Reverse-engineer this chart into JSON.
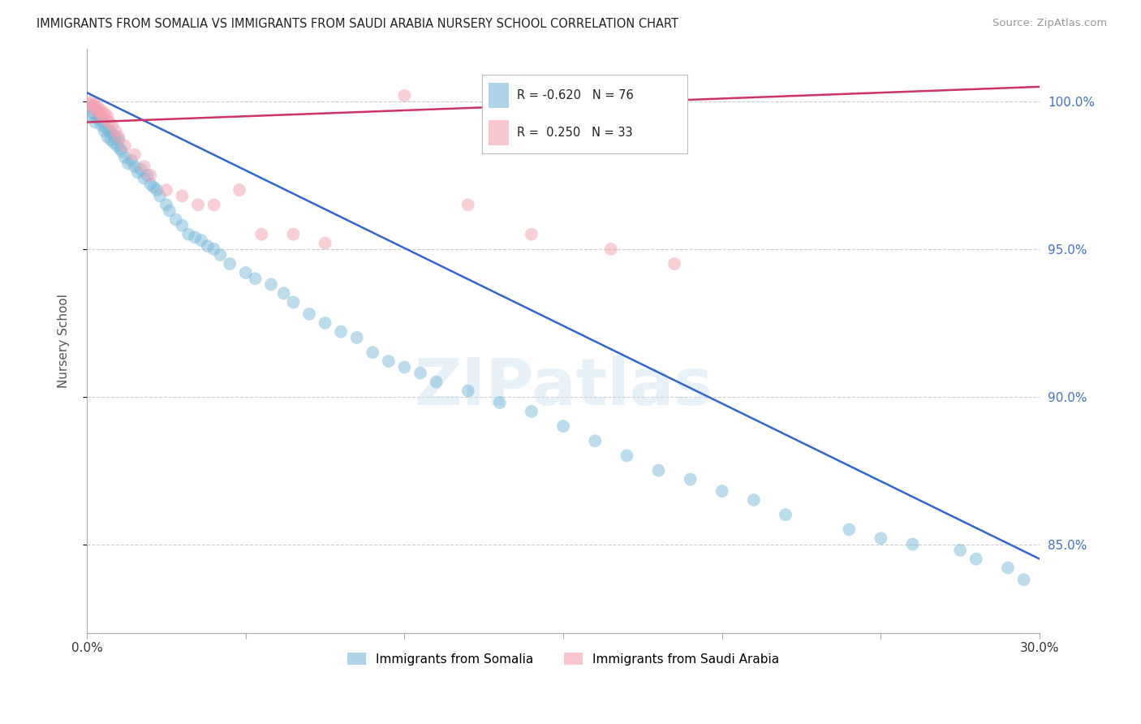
{
  "title": "IMMIGRANTS FROM SOMALIA VS IMMIGRANTS FROM SAUDI ARABIA NURSERY SCHOOL CORRELATION CHART",
  "source": "Source: ZipAtlas.com",
  "ylabel": "Nursery School",
  "yticks": [
    100.0,
    95.0,
    90.0,
    85.0
  ],
  "ytick_labels": [
    "100.0%",
    "95.0%",
    "90.0%",
    "85.0%"
  ],
  "xmin": 0.0,
  "xmax": 30.0,
  "ymin": 82.0,
  "ymax": 101.8,
  "legend_somalia": "Immigrants from Somalia",
  "legend_saudi": "Immigrants from Saudi Arabia",
  "R_somalia": -0.62,
  "N_somalia": 76,
  "R_saudi": 0.25,
  "N_saudi": 33,
  "color_somalia": "#7ab8d9",
  "color_saudi": "#f4a0b0",
  "color_line_somalia": "#3366cc",
  "color_line_saudi": "#cc3366",
  "watermark": "ZIPatlas",
  "somalia_x": [
    0.1,
    0.15,
    0.2,
    0.25,
    0.3,
    0.35,
    0.4,
    0.45,
    0.5,
    0.55,
    0.6,
    0.65,
    0.7,
    0.75,
    0.8,
    0.85,
    0.9,
    0.95,
    1.0,
    1.05,
    1.1,
    1.2,
    1.3,
    1.4,
    1.5,
    1.6,
    1.7,
    1.8,
    1.9,
    2.0,
    2.1,
    2.2,
    2.3,
    2.5,
    2.6,
    2.8,
    3.0,
    3.2,
    3.4,
    3.6,
    3.8,
    4.0,
    4.2,
    4.5,
    5.0,
    5.3,
    5.8,
    6.2,
    6.5,
    7.0,
    7.5,
    8.0,
    8.5,
    9.0,
    9.5,
    10.0,
    10.5,
    11.0,
    12.0,
    13.0,
    14.0,
    15.0,
    16.0,
    17.0,
    18.0,
    19.0,
    20.0,
    21.0,
    22.0,
    24.0,
    25.0,
    26.0,
    27.5,
    28.0,
    29.0,
    29.5
  ],
  "somalia_y": [
    99.8,
    99.5,
    99.6,
    99.3,
    99.7,
    99.4,
    99.5,
    99.2,
    99.3,
    99.0,
    99.1,
    98.8,
    99.0,
    98.7,
    98.9,
    98.6,
    98.8,
    98.5,
    98.7,
    98.4,
    98.3,
    98.1,
    97.9,
    98.0,
    97.8,
    97.6,
    97.7,
    97.4,
    97.5,
    97.2,
    97.1,
    97.0,
    96.8,
    96.5,
    96.3,
    96.0,
    95.8,
    95.5,
    95.4,
    95.3,
    95.1,
    95.0,
    94.8,
    94.5,
    94.2,
    94.0,
    93.8,
    93.5,
    93.2,
    92.8,
    92.5,
    92.2,
    92.0,
    91.5,
    91.2,
    91.0,
    90.8,
    90.5,
    90.2,
    89.8,
    89.5,
    89.0,
    88.5,
    88.0,
    87.5,
    87.2,
    86.8,
    86.5,
    86.0,
    85.5,
    85.2,
    85.0,
    84.8,
    84.5,
    84.2,
    83.8
  ],
  "saudi_x": [
    0.1,
    0.15,
    0.2,
    0.25,
    0.3,
    0.35,
    0.4,
    0.45,
    0.5,
    0.55,
    0.6,
    0.65,
    0.7,
    0.8,
    0.9,
    1.0,
    1.2,
    1.5,
    1.8,
    2.0,
    2.5,
    3.0,
    3.5,
    4.0,
    4.8,
    5.5,
    6.5,
    7.5,
    10.0,
    12.0,
    14.0,
    16.5,
    18.5
  ],
  "saudi_y": [
    99.9,
    100.0,
    99.8,
    99.9,
    99.7,
    99.8,
    99.6,
    99.7,
    99.5,
    99.6,
    99.4,
    99.5,
    99.3,
    99.2,
    99.0,
    98.8,
    98.5,
    98.2,
    97.8,
    97.5,
    97.0,
    96.8,
    96.5,
    96.5,
    97.0,
    95.5,
    95.5,
    95.2,
    100.2,
    96.5,
    95.5,
    95.0,
    94.5
  ],
  "line_somalia_x0": 0.0,
  "line_somalia_y0": 100.3,
  "line_somalia_x1": 30.0,
  "line_somalia_y1": 84.5,
  "line_saudi_x0": 0.0,
  "line_saudi_y0": 99.3,
  "line_saudi_x1": 30.0,
  "line_saudi_y1": 100.5
}
